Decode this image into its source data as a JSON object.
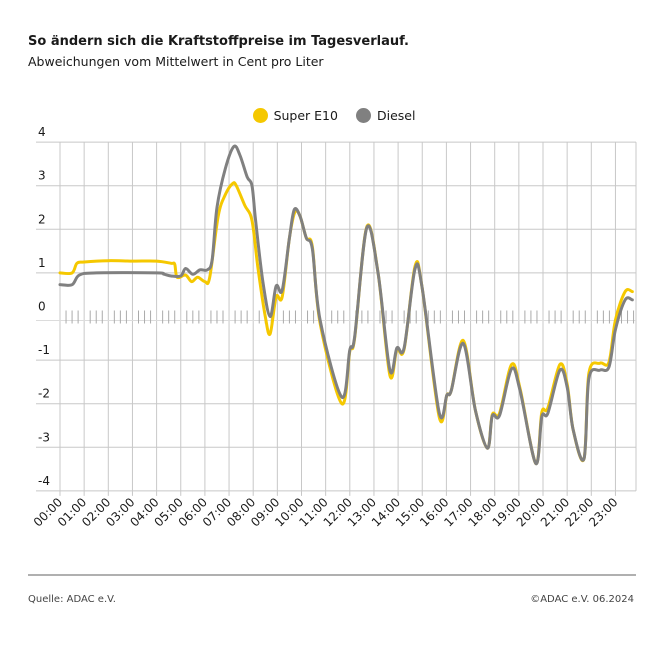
{
  "header": {
    "title": "So ändern sich die Kraftstoffpreise im Tagesverlauf.",
    "subtitle": "Abweichungen vom Mittelwert in Cent pro Liter"
  },
  "footer": {
    "source": "Quelle: ADAC e.V.",
    "copyright": "©ADAC e.V.  06.2024"
  },
  "chart_data": {
    "type": "line",
    "title": "So ändern sich die Kraftstoffpreise im Tagesverlauf.",
    "subtitle": "Abweichungen vom Mittelwert in Cent pro Liter",
    "xlabel": "",
    "ylabel": "",
    "ylim": [
      -4,
      4
    ],
    "yticks": [
      4,
      3,
      2,
      1,
      0,
      -1,
      -2,
      -3,
      -4
    ],
    "xticks": [
      "00:00",
      "01:00",
      "02:00",
      "03:00",
      "04:00",
      "05:00",
      "06:00",
      "07:00",
      "08:00",
      "09:00",
      "10:00",
      "11:00",
      "12:00",
      "13:00",
      "14:00",
      "15:00",
      "16:00",
      "17:00",
      "18:00",
      "19:00",
      "20:00",
      "21:00",
      "22:00",
      "23:00"
    ],
    "grid": true,
    "legend_placement": "top-center",
    "series": [
      {
        "name": "Super E10",
        "color": "#f5c800",
        "points": [
          [
            0,
            1.0
          ],
          [
            0.5,
            1.0
          ],
          [
            0.7,
            1.22
          ],
          [
            1,
            1.25
          ],
          [
            2,
            1.28
          ],
          [
            3,
            1.27
          ],
          [
            4,
            1.27
          ],
          [
            4.6,
            1.22
          ],
          [
            4.75,
            1.2
          ],
          [
            4.85,
            0.9
          ],
          [
            5.2,
            0.95
          ],
          [
            5.45,
            0.8
          ],
          [
            5.7,
            0.9
          ],
          [
            6.0,
            0.8
          ],
          [
            6.2,
            0.9
          ],
          [
            6.55,
            2.3
          ],
          [
            6.85,
            2.8
          ],
          [
            7.15,
            3.05
          ],
          [
            7.3,
            3.0
          ],
          [
            7.65,
            2.55
          ],
          [
            7.95,
            2.2
          ],
          [
            8.2,
            1.1
          ],
          [
            8.5,
            0.0
          ],
          [
            8.7,
            -0.4
          ],
          [
            8.95,
            0.45
          ],
          [
            9.2,
            0.45
          ],
          [
            9.5,
            1.8
          ],
          [
            9.73,
            2.4
          ],
          [
            9.94,
            2.3
          ],
          [
            10.2,
            1.8
          ],
          [
            10.45,
            1.6
          ],
          [
            10.77,
            -0.15
          ],
          [
            11.67,
            -2.0
          ],
          [
            12.0,
            -0.8
          ],
          [
            12.2,
            -0.5
          ],
          [
            12.7,
            2.05
          ],
          [
            13.17,
            1.0
          ],
          [
            13.66,
            -1.35
          ],
          [
            13.95,
            -0.75
          ],
          [
            14.25,
            -0.75
          ],
          [
            14.7,
            1.15
          ],
          [
            14.99,
            0.68
          ],
          [
            15.7,
            -2.3
          ],
          [
            16.02,
            -1.8
          ],
          [
            16.2,
            -1.7
          ],
          [
            16.7,
            -0.55
          ],
          [
            17.2,
            -2.15
          ],
          [
            17.7,
            -3.02
          ],
          [
            17.9,
            -2.25
          ],
          [
            18.2,
            -2.22
          ],
          [
            18.7,
            -1.1
          ],
          [
            19.05,
            -1.65
          ],
          [
            19.7,
            -3.37
          ],
          [
            19.95,
            -2.2
          ],
          [
            20.2,
            -2.1
          ],
          [
            20.7,
            -1.1
          ],
          [
            21.0,
            -1.55
          ],
          [
            21.25,
            -2.6
          ],
          [
            21.7,
            -3.26
          ],
          [
            21.9,
            -1.3
          ],
          [
            22.36,
            -1.07
          ],
          [
            22.73,
            -1.05
          ],
          [
            23.0,
            -0.08
          ],
          [
            23.4,
            0.57
          ],
          [
            23.7,
            0.57
          ]
        ]
      },
      {
        "name": "Diesel",
        "color": "#808080",
        "points": [
          [
            0,
            0.73
          ],
          [
            0.5,
            0.73
          ],
          [
            0.8,
            0.95
          ],
          [
            1.5,
            1.0
          ],
          [
            4,
            1.0
          ],
          [
            4.3,
            0.97
          ],
          [
            4.6,
            0.93
          ],
          [
            5.0,
            0.93
          ],
          [
            5.2,
            1.1
          ],
          [
            5.5,
            0.97
          ],
          [
            5.8,
            1.07
          ],
          [
            6.1,
            1.07
          ],
          [
            6.3,
            1.3
          ],
          [
            6.5,
            2.5
          ],
          [
            6.85,
            3.4
          ],
          [
            7.2,
            3.9
          ],
          [
            7.45,
            3.7
          ],
          [
            7.75,
            3.2
          ],
          [
            7.95,
            3.0
          ],
          [
            8.1,
            2.2
          ],
          [
            8.4,
            0.8
          ],
          [
            8.7,
            0.0
          ],
          [
            8.95,
            0.7
          ],
          [
            9.2,
            0.6
          ],
          [
            9.5,
            1.8
          ],
          [
            9.7,
            2.45
          ],
          [
            9.94,
            2.3
          ],
          [
            10.2,
            1.8
          ],
          [
            10.45,
            1.55
          ],
          [
            10.77,
            -0.08
          ],
          [
            11.67,
            -1.85
          ],
          [
            12.0,
            -0.77
          ],
          [
            12.2,
            -0.47
          ],
          [
            12.7,
            2.03
          ],
          [
            13.17,
            1.0
          ],
          [
            13.66,
            -1.23
          ],
          [
            13.95,
            -0.72
          ],
          [
            14.25,
            -0.72
          ],
          [
            14.7,
            1.09
          ],
          [
            14.99,
            0.68
          ],
          [
            15.7,
            -2.2
          ],
          [
            16.02,
            -1.8
          ],
          [
            16.2,
            -1.7
          ],
          [
            16.7,
            -0.62
          ],
          [
            17.2,
            -2.15
          ],
          [
            17.7,
            -3.02
          ],
          [
            17.9,
            -2.28
          ],
          [
            18.2,
            -2.27
          ],
          [
            18.7,
            -1.2
          ],
          [
            19.05,
            -1.7
          ],
          [
            19.7,
            -3.37
          ],
          [
            19.95,
            -2.3
          ],
          [
            20.2,
            -2.22
          ],
          [
            20.7,
            -1.23
          ],
          [
            21.0,
            -1.62
          ],
          [
            21.25,
            -2.6
          ],
          [
            21.7,
            -3.26
          ],
          [
            21.9,
            -1.42
          ],
          [
            22.36,
            -1.23
          ],
          [
            22.73,
            -1.16
          ],
          [
            23.0,
            -0.3
          ],
          [
            23.4,
            0.38
          ],
          [
            23.7,
            0.38
          ]
        ]
      }
    ]
  }
}
